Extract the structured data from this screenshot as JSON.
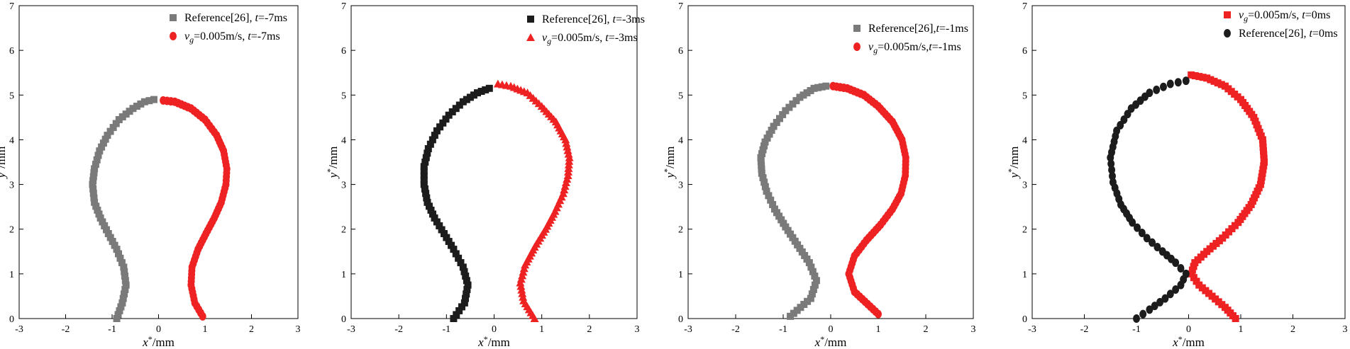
{
  "figure": {
    "colors": {
      "gray": "#7a7a7a",
      "black": "#1c1c1c",
      "red": "#ee2222"
    }
  },
  "chart_data": [
    {
      "type": "scatter",
      "panel": "t=-7ms",
      "xlabel": "x*/mm",
      "ylabel": "y*/mm",
      "xlim": [
        -3,
        3
      ],
      "ylim": [
        0,
        7
      ],
      "x_ticks": [
        "-3",
        "-2",
        "-1",
        "0",
        "1",
        "2",
        "3"
      ],
      "y_ticks": [
        "0",
        "1",
        "2",
        "3",
        "4",
        "5",
        "6",
        "7"
      ],
      "legend_position": "top-right",
      "series": [
        {
          "name": "Reference[26], t=-7ms",
          "legend_lines": [
            "Reference[26], t=-7ms"
          ],
          "marker": "square",
          "color": "#7a7a7a",
          "step": 0.1,
          "x": [
            -0.1,
            -0.3,
            -0.55,
            -0.85,
            -1.1,
            -1.27,
            -1.38,
            -1.42,
            -1.38,
            -1.25,
            -1.08,
            -0.9,
            -0.75,
            -0.7,
            -0.78,
            -0.9
          ],
          "y": [
            4.9,
            4.85,
            4.7,
            4.45,
            4.1,
            3.75,
            3.35,
            3.0,
            2.6,
            2.25,
            1.9,
            1.55,
            1.15,
            0.75,
            0.35,
            0.0
          ]
        },
        {
          "name": "vg=0.005m/s, t=-7ms",
          "legend_lines": [
            "vg=0.005m/s, t=-7ms"
          ],
          "marker": "circle",
          "color": "#ee2222",
          "step": 0.08,
          "x": [
            0.1,
            0.35,
            0.7,
            1.0,
            1.25,
            1.4,
            1.47,
            1.45,
            1.35,
            1.2,
            1.02,
            0.85,
            0.72,
            0.7,
            0.78,
            0.95
          ],
          "y": [
            4.88,
            4.85,
            4.7,
            4.45,
            4.1,
            3.75,
            3.35,
            3.0,
            2.6,
            2.25,
            1.9,
            1.55,
            1.15,
            0.75,
            0.35,
            0.05
          ]
        }
      ]
    },
    {
      "type": "scatter",
      "panel": "t=-3ms",
      "xlabel": "x*/mm",
      "ylabel": "y*/mm",
      "xlim": [
        -3,
        3
      ],
      "ylim": [
        0,
        7
      ],
      "x_ticks": [
        "-3",
        "-2",
        "-1",
        "0",
        "1",
        "2",
        "3"
      ],
      "y_ticks": [
        "0",
        "1",
        "2",
        "3",
        "4",
        "5",
        "6",
        "7"
      ],
      "legend_position": "top-right",
      "series": [
        {
          "name": "Reference[26], t=-3ms",
          "legend_lines": [
            "Reference[26], t=-3ms"
          ],
          "marker": "square",
          "color": "#1c1c1c",
          "step": 0.1,
          "x": [
            -0.1,
            -0.35,
            -0.65,
            -0.95,
            -1.2,
            -1.38,
            -1.47,
            -1.47,
            -1.4,
            -1.25,
            -1.05,
            -0.85,
            -0.65,
            -0.55,
            -0.62,
            -0.85
          ],
          "y": [
            5.15,
            5.05,
            4.85,
            4.55,
            4.2,
            3.8,
            3.4,
            3.0,
            2.6,
            2.25,
            1.9,
            1.55,
            1.15,
            0.75,
            0.35,
            0.0
          ]
        },
        {
          "name": "vg=0.005m/s, t=-3ms",
          "legend_lines": [
            "vg=0.005m/s, t=-3ms"
          ],
          "marker": "triangle",
          "color": "#ee2222",
          "step": 0.08,
          "x": [
            0.08,
            0.35,
            0.7,
            1.0,
            1.3,
            1.5,
            1.58,
            1.55,
            1.45,
            1.28,
            1.08,
            0.85,
            0.65,
            0.55,
            0.62,
            0.85
          ],
          "y": [
            5.25,
            5.2,
            5.05,
            4.75,
            4.4,
            4.0,
            3.6,
            3.2,
            2.8,
            2.4,
            2.0,
            1.6,
            1.2,
            0.8,
            0.4,
            0.0
          ]
        }
      ]
    },
    {
      "type": "scatter",
      "panel": "t=-1ms",
      "xlabel": "x*/mm",
      "ylabel": "y*/mm",
      "xlim": [
        -3,
        3
      ],
      "ylim": [
        0,
        7
      ],
      "x_ticks": [
        "-3",
        "-2",
        "-1",
        "0",
        "1",
        "2",
        "3"
      ],
      "y_ticks": [
        "0",
        "1",
        "2",
        "3",
        "4",
        "5",
        "6",
        "7"
      ],
      "legend_position": "top-right",
      "series": [
        {
          "name": "Reference[26],t=-1ms",
          "legend_lines": [
            "Reference[26],t=-1ms"
          ],
          "marker": "square",
          "color": "#7a7a7a",
          "step": 0.1,
          "x": [
            -0.1,
            -0.35,
            -0.65,
            -0.95,
            -1.2,
            -1.38,
            -1.47,
            -1.45,
            -1.35,
            -1.18,
            -0.95,
            -0.7,
            -0.45,
            -0.3,
            -0.42,
            -0.85
          ],
          "y": [
            5.2,
            5.15,
            4.95,
            4.65,
            4.3,
            3.95,
            3.6,
            3.25,
            2.85,
            2.45,
            2.05,
            1.65,
            1.25,
            0.85,
            0.45,
            0.05
          ]
        },
        {
          "name": "vg=0.005m/s,t=-1ms",
          "legend_lines": [
            "vg=0.005m/s,t=-1ms"
          ],
          "marker": "circle",
          "color": "#ee2222",
          "step": 0.08,
          "x": [
            0.05,
            0.35,
            0.7,
            1.0,
            1.3,
            1.5,
            1.58,
            1.57,
            1.48,
            1.3,
            1.05,
            0.75,
            0.5,
            0.38,
            0.5,
            1.0
          ],
          "y": [
            5.2,
            5.15,
            5.0,
            4.75,
            4.4,
            4.0,
            3.6,
            3.2,
            2.8,
            2.45,
            2.1,
            1.75,
            1.4,
            1.0,
            0.6,
            0.1
          ]
        }
      ]
    },
    {
      "type": "scatter",
      "panel": "t=0ms",
      "xlabel": "x*/mm",
      "ylabel": "y*/mm",
      "xlim": [
        -3,
        3
      ],
      "ylim": [
        0,
        7
      ],
      "x_ticks": [
        "-3",
        "-2",
        "-1",
        "0",
        "1",
        "2",
        "3"
      ],
      "y_ticks": [
        "0",
        "1",
        "2",
        "3",
        "4",
        "5",
        "6",
        "7"
      ],
      "legend_position": "top-right",
      "series": [
        {
          "name": "vg=0.005m/s, t=0ms",
          "legend_lines": [
            "vg=0.005m/s, t=0ms"
          ],
          "marker": "square",
          "color": "#ee2222",
          "step": 0.085,
          "x": [
            0.05,
            0.35,
            0.7,
            1.0,
            1.25,
            1.42,
            1.45,
            1.38,
            1.2,
            0.95,
            0.65,
            0.35,
            0.12,
            0.05,
            0.2,
            0.45,
            0.7,
            0.9
          ],
          "y": [
            5.45,
            5.38,
            5.2,
            4.9,
            4.5,
            4.0,
            3.5,
            3.0,
            2.55,
            2.15,
            1.8,
            1.5,
            1.25,
            1.0,
            0.75,
            0.5,
            0.25,
            0.0
          ]
        },
        {
          "name": "Reference[26], t=0ms",
          "legend_lines": [
            "Reference[26], t=0ms"
          ],
          "marker": "circle",
          "color": "#1c1c1c",
          "step": 0.13,
          "x": [
            -0.05,
            -0.35,
            -0.75,
            -1.1,
            -1.38,
            -1.5,
            -1.45,
            -1.3,
            -1.08,
            -0.8,
            -0.5,
            -0.25,
            -0.05,
            -0.15,
            -0.45,
            -0.75,
            -1.0
          ],
          "y": [
            5.32,
            5.25,
            5.05,
            4.7,
            4.2,
            3.6,
            3.05,
            2.55,
            2.15,
            1.8,
            1.5,
            1.25,
            1.0,
            0.75,
            0.45,
            0.2,
            0.0
          ]
        }
      ]
    }
  ]
}
